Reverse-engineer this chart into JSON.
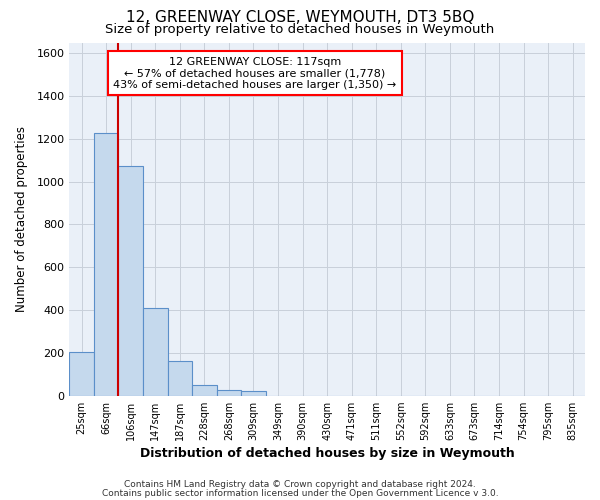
{
  "title": "12, GREENWAY CLOSE, WEYMOUTH, DT3 5BQ",
  "subtitle": "Size of property relative to detached houses in Weymouth",
  "xlabel": "Distribution of detached houses by size in Weymouth",
  "ylabel": "Number of detached properties",
  "categories": [
    "25sqm",
    "66sqm",
    "106sqm",
    "147sqm",
    "187sqm",
    "228sqm",
    "268sqm",
    "309sqm",
    "349sqm",
    "390sqm",
    "430sqm",
    "471sqm",
    "511sqm",
    "552sqm",
    "592sqm",
    "633sqm",
    "673sqm",
    "714sqm",
    "754sqm",
    "795sqm",
    "835sqm"
  ],
  "values": [
    205,
    1225,
    1075,
    410,
    160,
    52,
    25,
    20,
    0,
    0,
    0,
    0,
    0,
    0,
    0,
    0,
    0,
    0,
    0,
    0,
    0
  ],
  "bar_color": "#c5d9ed",
  "bar_edge_color": "#5b8fc9",
  "ylim": [
    0,
    1650
  ],
  "yticks": [
    0,
    200,
    400,
    600,
    800,
    1000,
    1200,
    1400,
    1600
  ],
  "red_line_x": 1.5,
  "annotation_title": "12 GREENWAY CLOSE: 117sqm",
  "annotation_line1": "← 57% of detached houses are smaller (1,778)",
  "annotation_line2": "43% of semi-detached houses are larger (1,350) →",
  "footer_line1": "Contains HM Land Registry data © Crown copyright and database right 2024.",
  "footer_line2": "Contains public sector information licensed under the Open Government Licence v 3.0.",
  "background_color": "#eaf0f8",
  "grid_color": "#c8d0da",
  "title_fontsize": 11,
  "subtitle_fontsize": 9.5
}
